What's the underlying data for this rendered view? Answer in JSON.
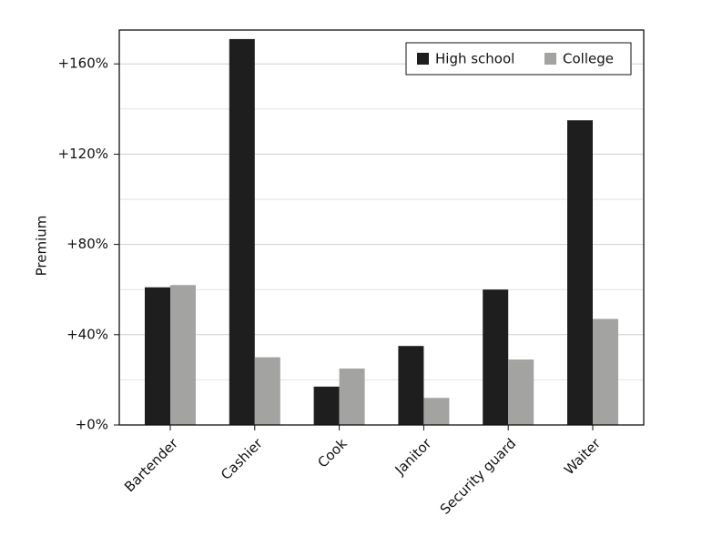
{
  "chart_data": {
    "type": "bar",
    "y_label": "Premium",
    "categories": [
      "Bartender",
      "Cashier",
      "Cook",
      "Janitor",
      "Security guard",
      "Waiter"
    ],
    "series": [
      {
        "name": "High school",
        "color": "#1e1e1e",
        "values": [
          61,
          171,
          17,
          35,
          60,
          135
        ]
      },
      {
        "name": "College",
        "color": "#a3a3a1",
        "values": [
          62,
          30,
          25,
          12,
          29,
          47
        ]
      }
    ],
    "ylim": [
      0,
      175
    ],
    "yticks": [
      {
        "value": 0,
        "label": "+0%"
      },
      {
        "value": 40,
        "label": "+40%"
      },
      {
        "value": 80,
        "label": "+80%"
      },
      {
        "value": 120,
        "label": "+120%"
      },
      {
        "value": 160,
        "label": "+160%"
      }
    ],
    "minor_yticks": [
      20,
      60,
      100,
      140
    ],
    "grid": true,
    "legend": "upper right"
  }
}
